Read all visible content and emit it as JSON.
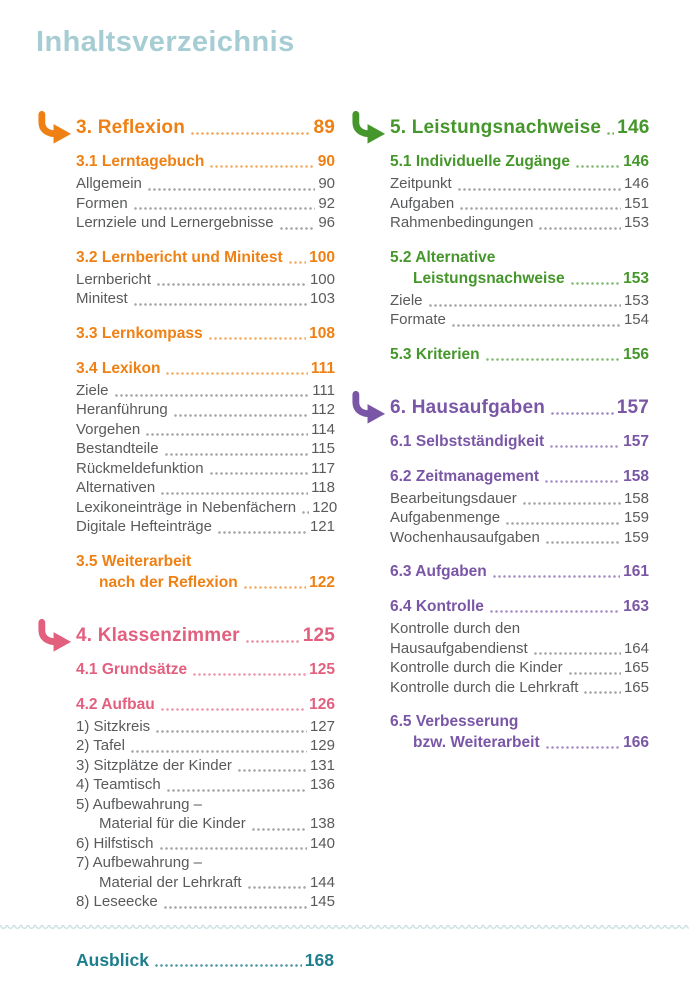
{
  "page": {
    "title": "Inhaltsverzeichnis"
  },
  "icons": {
    "chapter_arrow": "curved-arrow-icon"
  },
  "colors": {
    "title_teal": "#a6cdd3",
    "footer_teal": "#1e7e8d",
    "orange": "#ef8014",
    "pink": "#e25f7e",
    "green": "#45972b",
    "purple": "#7a56a6",
    "item_text": "#595a5c",
    "item_dots": "#a6a6a8",
    "divider": "#c9dfe2"
  },
  "columns": [
    {
      "chapters": [
        {
          "color": "orange",
          "title": {
            "lines": [
              "3. Reflexion"
            ],
            "page": "89"
          },
          "groups": [
            {
              "heading": {
                "lines": [
                  "3.1 Lerntagebuch"
                ],
                "page": "90"
              },
              "items": [
                {
                  "lines": [
                    "Allgemein"
                  ],
                  "page": "90"
                },
                {
                  "lines": [
                    "Formen"
                  ],
                  "page": "92"
                },
                {
                  "lines": [
                    "Lernziele und Lernergebnisse"
                  ],
                  "page": "96"
                }
              ]
            },
            {
              "heading": {
                "lines": [
                  "3.2 Lernbericht und Minitest"
                ],
                "page": "100"
              },
              "items": [
                {
                  "lines": [
                    "Lernbericht"
                  ],
                  "page": "100"
                },
                {
                  "lines": [
                    "Minitest"
                  ],
                  "page": "103"
                }
              ]
            },
            {
              "heading": {
                "lines": [
                  "3.3 Lernkompass"
                ],
                "page": "108"
              },
              "items": []
            },
            {
              "heading": {
                "lines": [
                  "3.4 Lexikon"
                ],
                "page": "111"
              },
              "items": [
                {
                  "lines": [
                    "Ziele"
                  ],
                  "page": "111"
                },
                {
                  "lines": [
                    "Heranführung"
                  ],
                  "page": "112"
                },
                {
                  "lines": [
                    "Vorgehen"
                  ],
                  "page": "114"
                },
                {
                  "lines": [
                    "Bestandteile"
                  ],
                  "page": "115"
                },
                {
                  "lines": [
                    "Rückmeldefunktion"
                  ],
                  "page": "117"
                },
                {
                  "lines": [
                    "Alternativen"
                  ],
                  "page": "118"
                },
                {
                  "lines": [
                    "Lexikoneinträge in Nebenfächern"
                  ],
                  "page": "120"
                },
                {
                  "lines": [
                    "Digitale Hefteinträge"
                  ],
                  "page": "121"
                }
              ]
            },
            {
              "heading": {
                "lines": [
                  "3.5 Weiterarbeit",
                  "nach der Reflexion"
                ],
                "page": "122",
                "indent2": true
              },
              "items": []
            }
          ]
        },
        {
          "color": "pink",
          "title": {
            "lines": [
              "4. Klassenzimmer"
            ],
            "page": "125"
          },
          "groups": [
            {
              "heading": {
                "lines": [
                  "4.1 Grundsätze"
                ],
                "page": "125"
              },
              "items": []
            },
            {
              "heading": {
                "lines": [
                  "4.2 Aufbau"
                ],
                "page": "126"
              },
              "items": [
                {
                  "lines": [
                    "1) Sitzkreis"
                  ],
                  "page": "127"
                },
                {
                  "lines": [
                    "2) Tafel"
                  ],
                  "page": "129"
                },
                {
                  "lines": [
                    "3) Sitzplätze der Kinder"
                  ],
                  "page": "131"
                },
                {
                  "lines": [
                    "4) Teamtisch"
                  ],
                  "page": "136"
                },
                {
                  "lines": [
                    "5) Aufbewahrung –",
                    "Material für die Kinder"
                  ],
                  "page": "138",
                  "indent2": true
                },
                {
                  "lines": [
                    "6) Hilfstisch"
                  ],
                  "page": "140"
                },
                {
                  "lines": [
                    "7) Aufbewahrung –",
                    "Material der Lehrkraft"
                  ],
                  "page": "144",
                  "indent2": true
                },
                {
                  "lines": [
                    "8) Leseecke"
                  ],
                  "page": "145"
                }
              ]
            }
          ]
        }
      ]
    },
    {
      "chapters": [
        {
          "color": "green",
          "title": {
            "lines": [
              "5. Leistungsnachweise"
            ],
            "page": "146"
          },
          "groups": [
            {
              "heading": {
                "lines": [
                  "5.1 Individuelle Zugänge"
                ],
                "page": "146"
              },
              "items": [
                {
                  "lines": [
                    "Zeitpunkt"
                  ],
                  "page": "146"
                },
                {
                  "lines": [
                    "Aufgaben"
                  ],
                  "page": "151"
                },
                {
                  "lines": [
                    "Rahmenbedingungen"
                  ],
                  "page": "153"
                }
              ]
            },
            {
              "heading": {
                "lines": [
                  "5.2 Alternative",
                  "Leistungsnachweise"
                ],
                "page": "153",
                "indent2": true
              },
              "items": [
                {
                  "lines": [
                    "Ziele"
                  ],
                  "page": "153"
                },
                {
                  "lines": [
                    "Formate"
                  ],
                  "page": "154"
                }
              ]
            },
            {
              "heading": {
                "lines": [
                  "5.3 Kriterien"
                ],
                "page": "156"
              },
              "items": []
            }
          ]
        },
        {
          "color": "purple",
          "title": {
            "lines": [
              "6. Hausaufgaben"
            ],
            "page": "157"
          },
          "groups": [
            {
              "heading": {
                "lines": [
                  "6.1 Selbstständigkeit"
                ],
                "page": "157"
              },
              "items": []
            },
            {
              "heading": {
                "lines": [
                  "6.2 Zeitmanagement"
                ],
                "page": "158"
              },
              "items": [
                {
                  "lines": [
                    "Bearbeitungsdauer"
                  ],
                  "page": "158"
                },
                {
                  "lines": [
                    "Aufgabenmenge"
                  ],
                  "page": "159"
                },
                {
                  "lines": [
                    "Wochenhausaufgaben"
                  ],
                  "page": "159"
                }
              ]
            },
            {
              "heading": {
                "lines": [
                  "6.3 Aufgaben"
                ],
                "page": "161"
              },
              "items": []
            },
            {
              "heading": {
                "lines": [
                  "6.4 Kontrolle"
                ],
                "page": "163"
              },
              "items": [
                {
                  "lines": [
                    "Kontrolle durch den",
                    "Hausaufgabendienst"
                  ],
                  "page": "164",
                  "indent2": false
                },
                {
                  "lines": [
                    "Kontrolle durch die Kinder"
                  ],
                  "page": "165"
                },
                {
                  "lines": [
                    "Kontrolle durch die Lehrkraft"
                  ],
                  "page": "165"
                }
              ]
            },
            {
              "heading": {
                "lines": [
                  "6.5 Verbesserung",
                  "bzw. Weiterarbeit"
                ],
                "page": "166",
                "indent2": true
              },
              "items": []
            }
          ]
        }
      ]
    }
  ],
  "footer": {
    "label": "Ausblick",
    "page": "168"
  }
}
